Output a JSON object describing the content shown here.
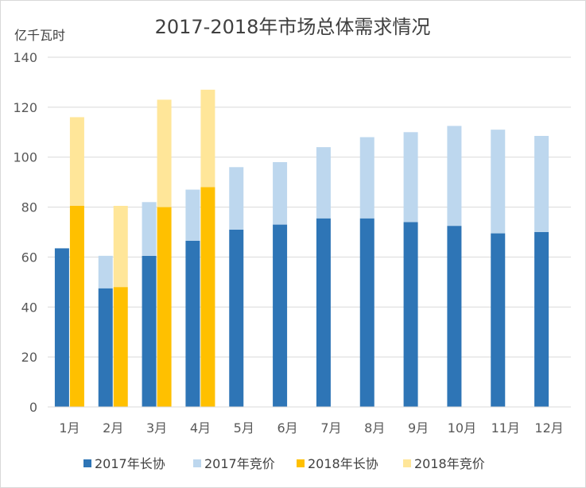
{
  "chart_data": {
    "type": "bar",
    "stacked": true,
    "title": "2017-2018年市场总体需求情况",
    "ylabel": "亿千瓦时",
    "ylim": [
      0,
      140
    ],
    "yticks": [
      0,
      20,
      40,
      60,
      80,
      100,
      120,
      140
    ],
    "grid": true,
    "legend_position": "bottom",
    "categories": [
      "1月",
      "2月",
      "3月",
      "4月",
      "5月",
      "6月",
      "7月",
      "8月",
      "9月",
      "10月",
      "11月",
      "12月"
    ],
    "groups": [
      {
        "name": "2017",
        "series": [
          {
            "name": "2017年长协",
            "color": "#2e75b6",
            "values": [
              63.5,
              47.5,
              60.5,
              66.5,
              71,
              73,
              75.5,
              75.5,
              74,
              72.5,
              69.5,
              70
            ]
          },
          {
            "name": "2017年竞价",
            "color": "#bdd7ee",
            "values": [
              0,
              13,
              21.5,
              20.5,
              25,
              25,
              28.5,
              32.5,
              36,
              40,
              41.5,
              38.5
            ]
          }
        ]
      },
      {
        "name": "2018",
        "series": [
          {
            "name": "2018年长协",
            "color": "#ffc000",
            "values": [
              80.5,
              48,
              80,
              88,
              null,
              null,
              null,
              null,
              null,
              null,
              null,
              null
            ]
          },
          {
            "name": "2018年竞价",
            "color": "#ffe699",
            "values": [
              35.5,
              32.5,
              43,
              39,
              null,
              null,
              null,
              null,
              null,
              null,
              null,
              null
            ]
          }
        ]
      }
    ]
  }
}
